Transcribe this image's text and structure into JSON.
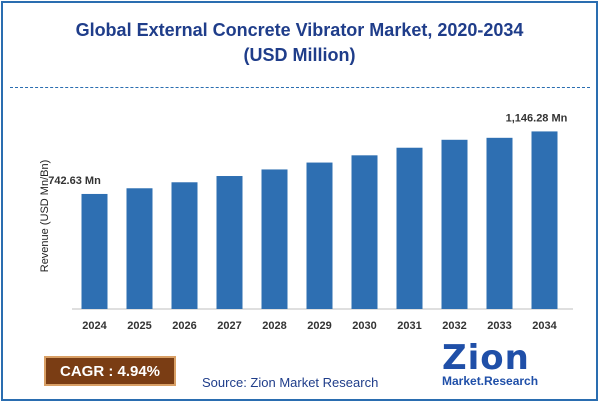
{
  "chart_data": {
    "type": "bar",
    "title_line1": "Global External Concrete Vibrator Market, 2020-2034",
    "title_line2": "(USD Million)",
    "ylabel": "Revenue (USD Mn/Bn)",
    "categories": [
      "2024",
      "2025",
      "2026",
      "2027",
      "2028",
      "2029",
      "2030",
      "2031",
      "2032",
      "2033",
      "2034"
    ],
    "values": [
      742.63,
      779.3,
      818.0,
      858.4,
      900.8,
      945.3,
      992.0,
      1041.0,
      1092.3,
      1105.0,
      1146.28
    ],
    "data_labels": {
      "first": "742.63 Mn",
      "last": "1,146.28 Mn"
    },
    "ylim": [
      0,
      1220
    ],
    "bar_color": "#2e6fb2",
    "grid": false
  },
  "footer": {
    "cagr_label": "CAGR : 4.94%",
    "source": "Source: Zion Market Research",
    "logo_word": "Zion",
    "logo_sub": "Market.Research"
  }
}
